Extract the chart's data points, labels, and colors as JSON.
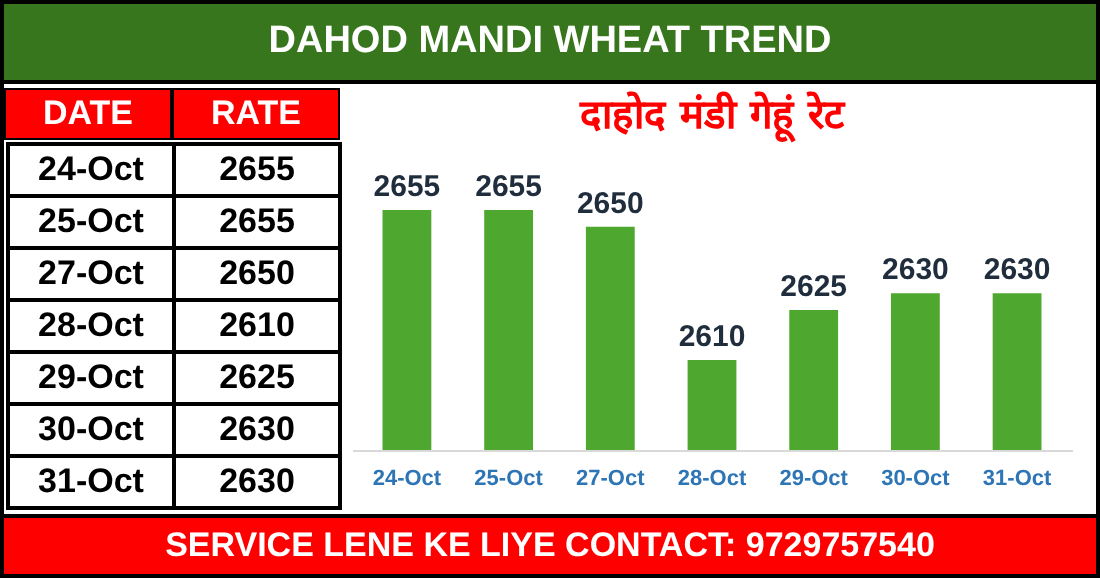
{
  "chart_data": [
    {
      "type": "other",
      "categories": [
        "24-Oct",
        "25-Oct",
        "27-Oct",
        "28-Oct",
        "29-Oct",
        "30-Oct",
        "31-Oct"
      ],
      "values": [
        2655,
        2655,
        2650,
        2610,
        2625,
        2630,
        2630
      ],
      "data_labels": true,
      "annotations": [
        "DATE",
        "RATE"
      ]
    },
    {
      "type": "bar",
      "title": "दाहोद मंडी गेहूं रेट",
      "subtitle": "DAHOD MANDI WHEAT TREND",
      "categories": [
        "24-Oct",
        "25-Oct",
        "27-Oct",
        "28-Oct",
        "29-Oct",
        "30-Oct",
        "31-Oct"
      ],
      "values": [
        2655,
        2655,
        2650,
        2610,
        2625,
        2630,
        2630
      ],
      "color": "#4ea72e",
      "ylim": [
        2583,
        2655
      ],
      "data_labels": true,
      "annotations": [
        "SERVICE LENE KE LIYE CONTACT: 9729757540"
      ]
    }
  ]
}
